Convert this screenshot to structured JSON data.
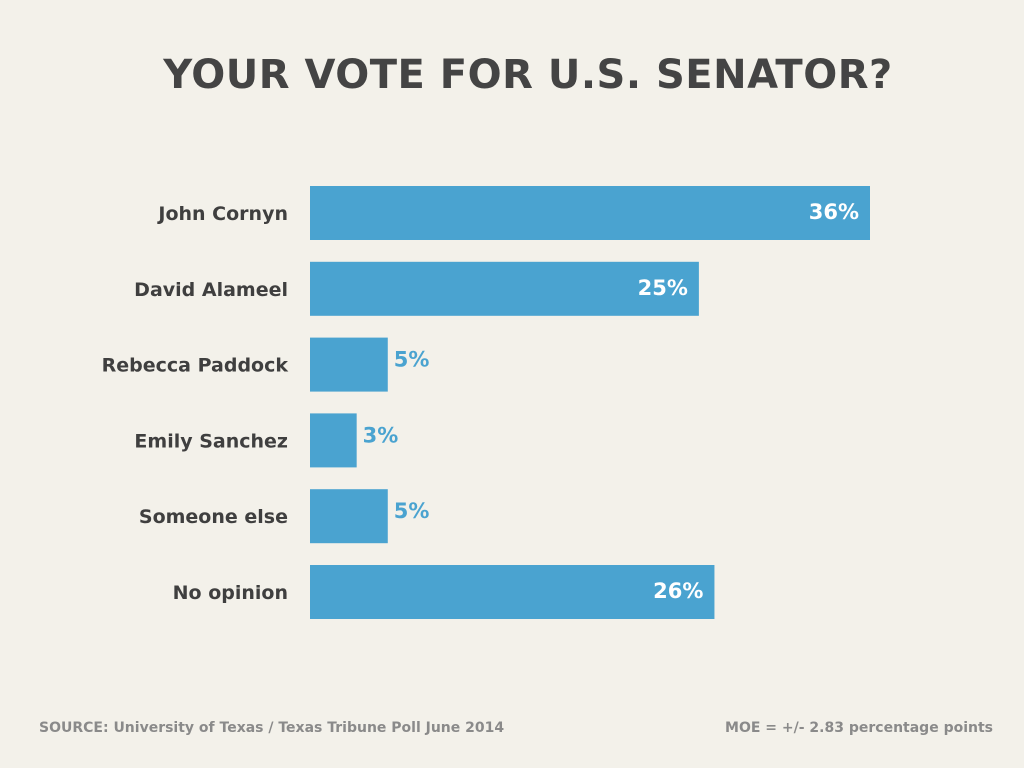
{
  "chart_data": {
    "type": "bar",
    "orientation": "horizontal",
    "title": "YOUR VOTE FOR U.S. SENATOR?",
    "categories": [
      "John Cornyn",
      "David Alameel",
      "Rebecca Paddock",
      "Emily Sanchez",
      "Someone else",
      "No opinion"
    ],
    "values": [
      36,
      25,
      5,
      3,
      5,
      26
    ],
    "value_labels": [
      "36%",
      "25%",
      "5%",
      "3%",
      "5%",
      "26%"
    ],
    "unit": "%",
    "xlim": [
      0,
      36
    ],
    "grid": false,
    "legend": "none",
    "bar_color": "#4aa3d0"
  },
  "footer": {
    "source": "SOURCE: University of Texas / Texas Tribune Poll June 2014",
    "moe": "MOE = +/- 2.83 percentage points"
  },
  "colors": {
    "background": "#f3f1ea",
    "title": "#444444",
    "label": "#3f3f3f",
    "footer": "#8a8a8a",
    "value_inside": "#ffffff",
    "value_outside": "#4aa3d0"
  }
}
